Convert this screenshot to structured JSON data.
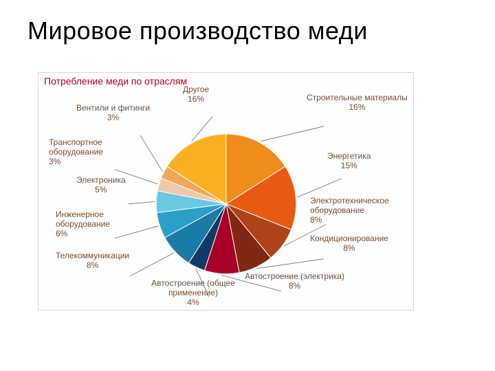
{
  "slide": {
    "title": "Мировое производство меди"
  },
  "chart": {
    "type": "pie",
    "title": "Потребление меди по отраслям",
    "title_color": "#b00028",
    "title_fontsize": 14,
    "background_color": "#fefefe",
    "border_color": "#d8d8d8",
    "label_color": "#7a4a2a",
    "label_fontsize": 12,
    "pie_radius": 102,
    "leader_color": "#6a6a6a",
    "slices": [
      {
        "label": "Строительные материалы",
        "pct": "16%",
        "value": 16,
        "color": "#f08c1a"
      },
      {
        "label": "Энергетика",
        "pct": "15%",
        "value": 15,
        "color": "#e85a12"
      },
      {
        "label": "Электротехническое оборудование",
        "pct": "8%",
        "value": 8,
        "color": "#b04218"
      },
      {
        "label": "Кондиционирование",
        "pct": "8%",
        "value": 8,
        "color": "#802810"
      },
      {
        "label": "Автостроение (электрика)",
        "pct": "8%",
        "value": 8,
        "color": "#a80028"
      },
      {
        "label": "Автостроение (общее применение)",
        "pct": "4%",
        "value": 4,
        "color": "#103a68"
      },
      {
        "label": "Телекоммуникации",
        "pct": "8%",
        "value": 8,
        "color": "#1a7aa8"
      },
      {
        "label": "Инженерное оборудование",
        "pct": "6%",
        "value": 6,
        "color": "#2aa0c8"
      },
      {
        "label": "Электроника",
        "pct": "5%",
        "value": 5,
        "color": "#6ac8e0"
      },
      {
        "label": "Транспортное оборудование",
        "pct": "3%",
        "value": 3,
        "color": "#f0c8a8"
      },
      {
        "label": "Вентили и фитинги",
        "pct": "3%",
        "value": 3,
        "color": "#f0a858"
      },
      {
        "label": "Другое",
        "pct": "16%",
        "value": 16,
        "color": "#f8b020"
      }
    ]
  }
}
